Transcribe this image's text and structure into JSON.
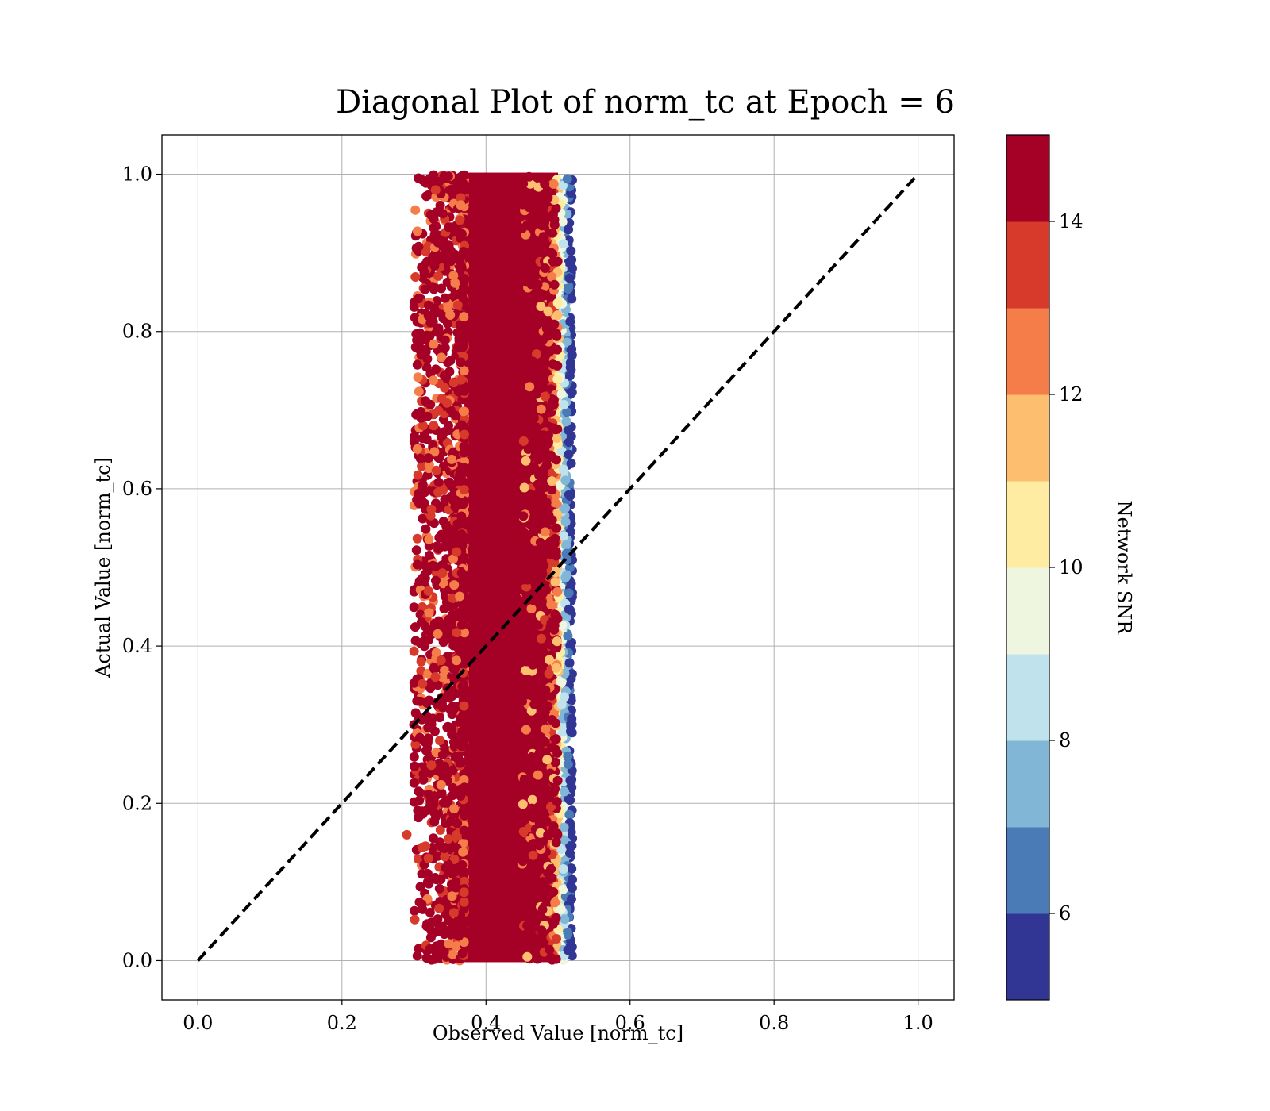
{
  "chart_data": {
    "type": "scatter",
    "title": "Diagonal Plot of norm_tc at Epoch = 6",
    "xlabel": "Observed Value [norm_tc]",
    "ylabel": "Actual Value [norm_tc]",
    "xlim": [
      -0.05,
      1.05
    ],
    "ylim": [
      -0.05,
      1.05
    ],
    "x_ticks": [
      "0.0",
      "0.2",
      "0.4",
      "0.6",
      "0.8",
      "1.0"
    ],
    "y_ticks": [
      "0.0",
      "0.2",
      "0.4",
      "0.6",
      "0.8",
      "1.0"
    ],
    "x_tick_values": [
      0,
      0.2,
      0.4,
      0.6,
      0.8,
      1.0
    ],
    "y_tick_values": [
      0,
      0.2,
      0.4,
      0.6,
      0.8,
      1.0
    ],
    "grid": true,
    "reference_line": {
      "style": "dashed",
      "color": "#000000",
      "from": [
        0,
        0
      ],
      "to": [
        1,
        1
      ]
    },
    "point_cloud": {
      "x_range": [
        0.29,
        0.52
      ],
      "y_range": [
        0.0,
        1.0
      ],
      "dense_core_x": [
        0.37,
        0.5
      ]
    },
    "sample_points": [
      {
        "x": 0.29,
        "y": 0.16,
        "snr": 13.5
      },
      {
        "x": 0.31,
        "y": 0.38,
        "snr": 13.5
      },
      {
        "x": 0.31,
        "y": 0.77,
        "snr": 14.5
      },
      {
        "x": 0.32,
        "y": 0.42,
        "snr": 14.5
      },
      {
        "x": 0.32,
        "y": 0.13,
        "snr": 13.5
      },
      {
        "x": 0.33,
        "y": 0.98,
        "snr": 13.5
      },
      {
        "x": 0.31,
        "y": 0.69,
        "snr": 14.5
      },
      {
        "x": 0.3,
        "y": 0.3,
        "snr": 14.5
      },
      {
        "x": 0.32,
        "y": 0.47,
        "snr": 13.5
      },
      {
        "x": 0.32,
        "y": 0.82,
        "snr": 14.5
      }
    ],
    "colorbar": {
      "label": "Network SNR",
      "min": 5,
      "max": 15,
      "ticks": [
        "6",
        "8",
        "10",
        "12",
        "14"
      ],
      "tick_values": [
        6,
        8,
        10,
        12,
        14
      ],
      "bins": [
        {
          "from": 5,
          "to": 6,
          "color": "#313695"
        },
        {
          "from": 6,
          "to": 7,
          "color": "#4a7bb7"
        },
        {
          "from": 7,
          "to": 8,
          "color": "#82b6d6"
        },
        {
          "from": 8,
          "to": 9,
          "color": "#c0e2ec"
        },
        {
          "from": 9,
          "to": 10,
          "color": "#eef6df"
        },
        {
          "from": 10,
          "to": 11,
          "color": "#feeca2"
        },
        {
          "from": 11,
          "to": 12,
          "color": "#fdbf6f"
        },
        {
          "from": 12,
          "to": 13,
          "color": "#f47d4a"
        },
        {
          "from": 13,
          "to": 14,
          "color": "#d73a2b"
        },
        {
          "from": 14,
          "to": 15,
          "color": "#a50026"
        }
      ]
    }
  }
}
